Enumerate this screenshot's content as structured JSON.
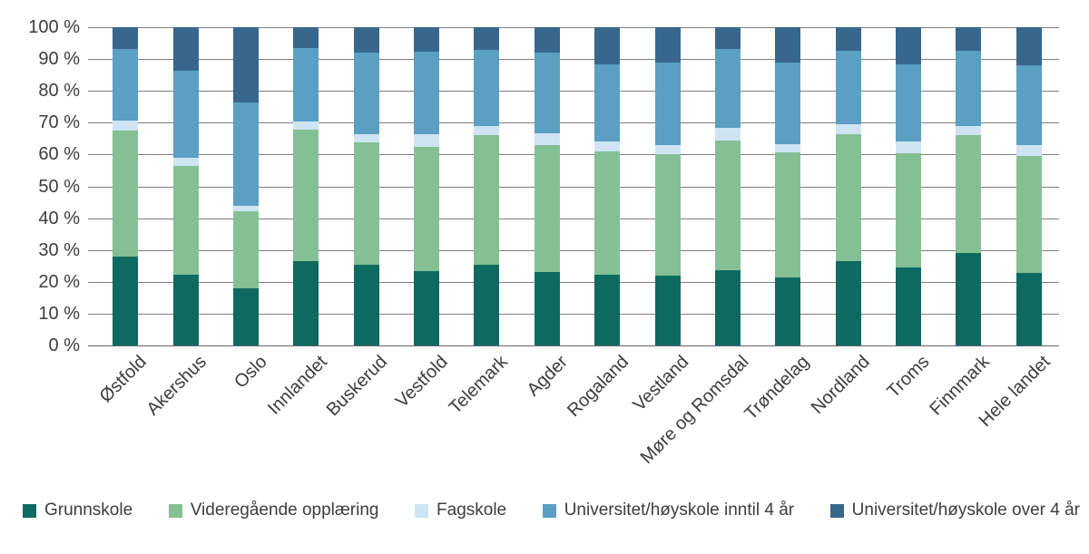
{
  "chart_data": {
    "type": "bar",
    "stacked": true,
    "orientation": "vertical",
    "title": "",
    "xlabel": "",
    "ylabel": "",
    "ylim": [
      0,
      100
    ],
    "grid": true,
    "legend_position": "bottom",
    "y_tick_labels": [
      "0 %",
      "10 %",
      "20 %",
      "30 %",
      "40 %",
      "50 %",
      "60 %",
      "70 %",
      "80 %",
      "90 %",
      "100 %"
    ],
    "categories": [
      "Østfold",
      "Akershus",
      "Oslo",
      "Innlandet",
      "Buskerud",
      "Vestfold",
      "Telemark",
      "Agder",
      "Rogaland",
      "Vestland",
      "Møre og Romsdal",
      "Trøndelag",
      "Nordland",
      "Troms",
      "Finnmark",
      "Hele landet"
    ],
    "series": [
      {
        "name": "Grunnskole",
        "color": "#0e6a60",
        "values": [
          28.0,
          22.2,
          18.0,
          26.5,
          25.5,
          23.3,
          25.3,
          23.0,
          22.2,
          21.8,
          23.6,
          21.5,
          26.6,
          24.5,
          29.0,
          22.8
        ]
      },
      {
        "name": "Videregående opplæring",
        "color": "#84c094",
        "values": [
          39.6,
          34.1,
          24.3,
          41.3,
          38.4,
          39.2,
          40.9,
          40.0,
          38.8,
          38.2,
          40.9,
          39.2,
          39.9,
          36.0,
          37.0,
          36.7
        ]
      },
      {
        "name": "Fagskole",
        "color": "#cfe4f3",
        "values": [
          3.2,
          2.6,
          1.7,
          2.5,
          2.6,
          3.8,
          2.8,
          3.7,
          3.0,
          3.0,
          3.8,
          2.6,
          3.0,
          3.5,
          3.0,
          3.5
        ]
      },
      {
        "name": "Universitet/høyskole inntil 4 år",
        "color": "#5b9fc2",
        "values": [
          22.5,
          27.3,
          32.5,
          23.2,
          25.5,
          26.1,
          24.0,
          25.3,
          24.4,
          26.0,
          24.8,
          25.6,
          23.2,
          24.4,
          23.7,
          25.1
        ]
      },
      {
        "name": "Universitet/høyskole over 4 år",
        "color": "#38678e",
        "values": [
          6.7,
          13.8,
          23.5,
          6.5,
          8.0,
          7.6,
          7.0,
          8.0,
          11.6,
          11.0,
          6.9,
          11.1,
          7.3,
          11.6,
          7.3,
          11.9
        ]
      }
    ]
  }
}
